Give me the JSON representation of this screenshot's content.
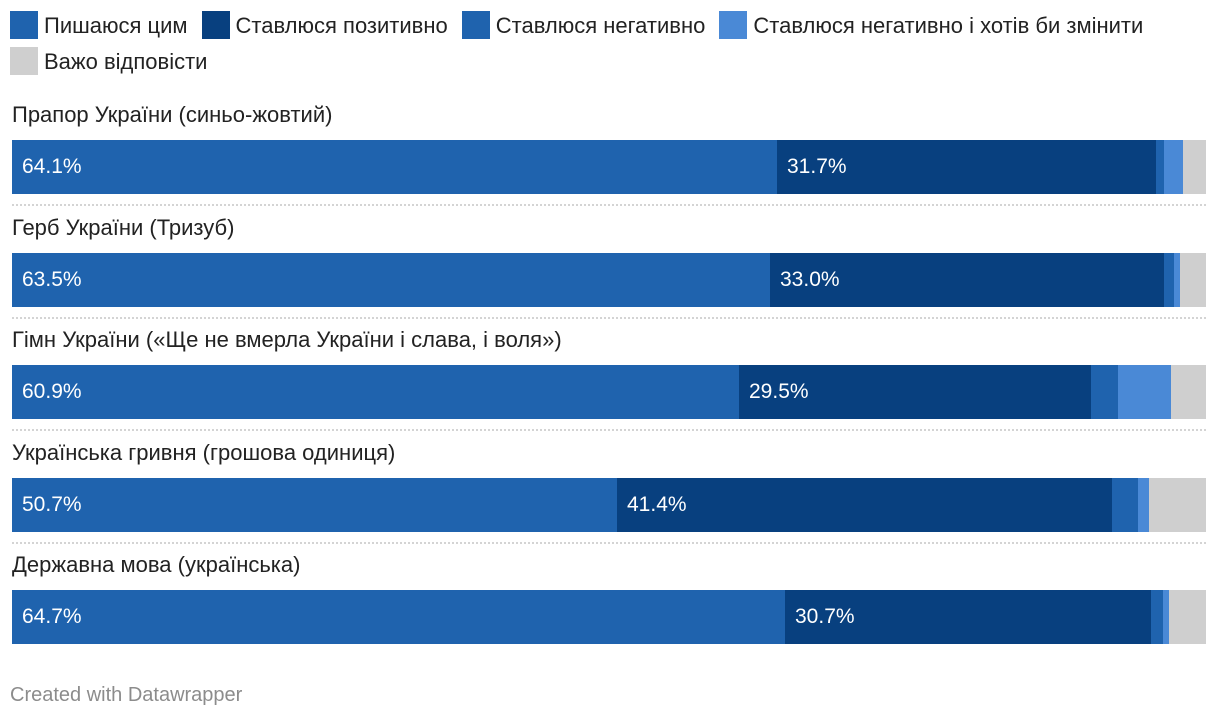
{
  "chart_data": {
    "type": "bar",
    "orientation": "horizontal",
    "stacked": true,
    "normalized": true,
    "legend_position": "top",
    "series": [
      {
        "name": "Пишаюся цим",
        "color": "#1f63ae"
      },
      {
        "name": "Ставлюся позитивно",
        "color": "#08407f"
      },
      {
        "name": "Ставлюся негативно",
        "color": "#1f63ae"
      },
      {
        "name": "Ставлюся негативно і хотів би змінити",
        "color": "#4a89d6"
      },
      {
        "name": "Важо відповісти",
        "color": "#cfcfcf"
      }
    ],
    "categories": [
      "Прапор України (синьо-жовтий)",
      "Герб України (Тризуб)",
      "Гімн України («Ще не вмерла України і слава, і воля»)",
      "Українська гривня (грошова одиниця)",
      "Державна мова (українська)"
    ],
    "rows": [
      {
        "values": [
          64.1,
          31.7,
          0.7,
          1.6,
          1.9
        ],
        "labels": [
          "64.1%",
          "31.7%"
        ]
      },
      {
        "values": [
          63.5,
          33.0,
          0.8,
          0.5,
          2.2
        ],
        "labels": [
          "63.5%",
          "33.0%"
        ]
      },
      {
        "values": [
          60.9,
          29.5,
          2.2,
          4.5,
          2.9
        ],
        "labels": [
          "60.9%",
          "29.5%"
        ]
      },
      {
        "values": [
          50.7,
          41.4,
          2.2,
          0.9,
          4.8
        ],
        "labels": [
          "50.7%",
          "41.4%"
        ]
      },
      {
        "values": [
          64.7,
          30.7,
          1.0,
          0.5,
          3.1
        ],
        "labels": [
          "64.7%",
          "30.7%"
        ]
      }
    ]
  },
  "footer": {
    "credit": "Created with Datawrapper"
  }
}
